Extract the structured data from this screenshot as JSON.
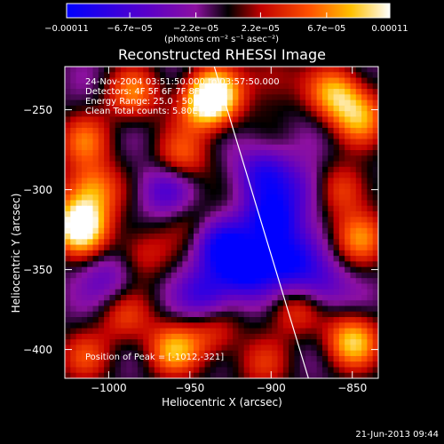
{
  "chart_data": {
    "type": "heatmap",
    "title": "Reconstructed RHESSI Image",
    "xlabel": "Heliocentric X (arcsec)",
    "ylabel": "Heliocentric Y (arcsec)",
    "xlim": [
      -1027,
      -834
    ],
    "ylim": [
      -418,
      -223
    ],
    "x_ticks": [
      -1000,
      -950,
      -900,
      -850
    ],
    "y_ticks": [
      -250,
      -300,
      -350,
      -400
    ],
    "x_tick_labels": [
      "−1000",
      "−950",
      "−900",
      "−850"
    ],
    "y_tick_labels": [
      "−250",
      "−300",
      "−350",
      "−400"
    ],
    "colorbar": {
      "ticks": [
        -0.00011,
        -6.7e-05,
        -2.2e-05,
        2.2e-05,
        6.7e-05,
        0.00011
      ],
      "tick_labels": [
        "−0.00011",
        "−6.7e−05",
        "−2.2e−05",
        "2.2e−05",
        "6.7e−05",
        "0.00011"
      ],
      "min": -0.00011,
      "max": 0.00011,
      "units": "(photons cm⁻² s⁻¹ asec⁻²)"
    },
    "annotations": [
      "24-Nov-2004 03:51:50.000 to 03:57:50.000",
      "Detectors: 4F 5F 6F 7F 8F, Att 0",
      "Energy Range: 25.0 - 50.0 keV",
      "Clean    Total counts: 5.80E+03"
    ],
    "peak_label": "Position of Peak = [-1012,-321]",
    "limb_line": [
      [
        -935,
        -223
      ],
      [
        -877,
        -418
      ]
    ],
    "hotspots": [
      {
        "x": -1018,
        "y": -323,
        "v": 1.0
      },
      {
        "x": -1010,
        "y": -300,
        "v": 0.6
      },
      {
        "x": -1015,
        "y": -270,
        "v": 0.45
      },
      {
        "x": -985,
        "y": -240,
        "v": 0.5
      },
      {
        "x": -940,
        "y": -248,
        "v": 0.55
      },
      {
        "x": -935,
        "y": -240,
        "v": 0.7
      },
      {
        "x": -955,
        "y": -280,
        "v": 0.45
      },
      {
        "x": -900,
        "y": -230,
        "v": 0.3
      },
      {
        "x": -860,
        "y": -240,
        "v": 0.65
      },
      {
        "x": -845,
        "y": -255,
        "v": 0.55
      },
      {
        "x": -855,
        "y": -300,
        "v": 0.45
      },
      {
        "x": -845,
        "y": -330,
        "v": 0.5
      },
      {
        "x": -980,
        "y": -340,
        "v": 0.35
      },
      {
        "x": -990,
        "y": -380,
        "v": 0.35
      },
      {
        "x": -960,
        "y": -400,
        "v": 0.6
      },
      {
        "x": -1015,
        "y": -405,
        "v": 0.35
      },
      {
        "x": -905,
        "y": -410,
        "v": 0.3
      },
      {
        "x": -850,
        "y": -395,
        "v": 0.7
      },
      {
        "x": -885,
        "y": -375,
        "v": 0.4
      },
      {
        "x": -935,
        "y": -390,
        "v": 0.35
      },
      {
        "x": -950,
        "y": -320,
        "v": 0.2
      },
      {
        "x": -915,
        "y": -350,
        "v": -0.7
      },
      {
        "x": -930,
        "y": -335,
        "v": -0.6
      },
      {
        "x": -900,
        "y": -320,
        "v": -0.75
      },
      {
        "x": -890,
        "y": -345,
        "v": -0.65
      },
      {
        "x": -905,
        "y": -290,
        "v": -0.5
      },
      {
        "x": -965,
        "y": -300,
        "v": -0.4
      },
      {
        "x": -940,
        "y": -365,
        "v": -0.5
      },
      {
        "x": -880,
        "y": -300,
        "v": -0.35
      },
      {
        "x": -1000,
        "y": -355,
        "v": -0.3
      },
      {
        "x": -870,
        "y": -360,
        "v": -0.4
      }
    ]
  },
  "footer": {
    "timestamp": "21-Jun-2013 09:44"
  }
}
